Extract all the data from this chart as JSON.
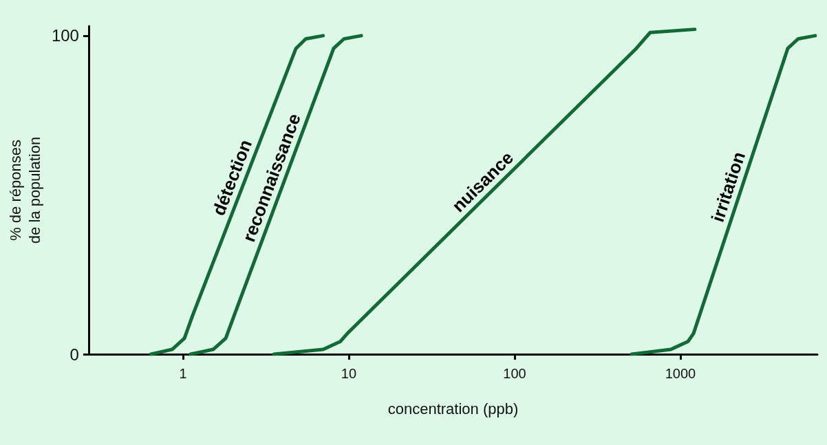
{
  "chart_data": {
    "type": "line",
    "xlabel": "concentration (ppb)",
    "ylabel": "% de réponses\nde la population",
    "log": "x",
    "xlim": [
      0.27,
      6700
    ],
    "xticks": [
      1,
      10,
      100,
      1000
    ],
    "ylim": [
      0,
      103
    ],
    "yticks": [
      0,
      100
    ],
    "grid": false,
    "legend": false,
    "marker": "none",
    "line_style": "solid",
    "series": [
      {
        "name": "détection",
        "color": "#126b36",
        "x": [
          0.64,
          0.86,
          1.02,
          1.14,
          4.8,
          5.5,
          7.0
        ],
        "values": [
          0,
          1.5,
          5,
          12,
          96,
          99,
          100
        ]
      },
      {
        "name": "reconnaissance",
        "color": "#126b36",
        "x": [
          1.11,
          1.52,
          1.81,
          2.03,
          8.1,
          9.35,
          11.9
        ],
        "values": [
          0,
          1.5,
          5,
          12,
          96,
          99,
          100
        ]
      },
      {
        "name": "nuisance",
        "color": "#126b36",
        "x": [
          3.53,
          7.0,
          8.9,
          9.8,
          542,
          657,
          1222
        ],
        "values": [
          0,
          1.5,
          4,
          6.5,
          96,
          101,
          102
        ]
      },
      {
        "name": "irritation",
        "color": "#126b36",
        "x": [
          507,
          875,
          1111,
          1200,
          4440,
          5130,
          6500
        ],
        "values": [
          0,
          1.5,
          4,
          6.5,
          96,
          99,
          100
        ]
      }
    ]
  }
}
